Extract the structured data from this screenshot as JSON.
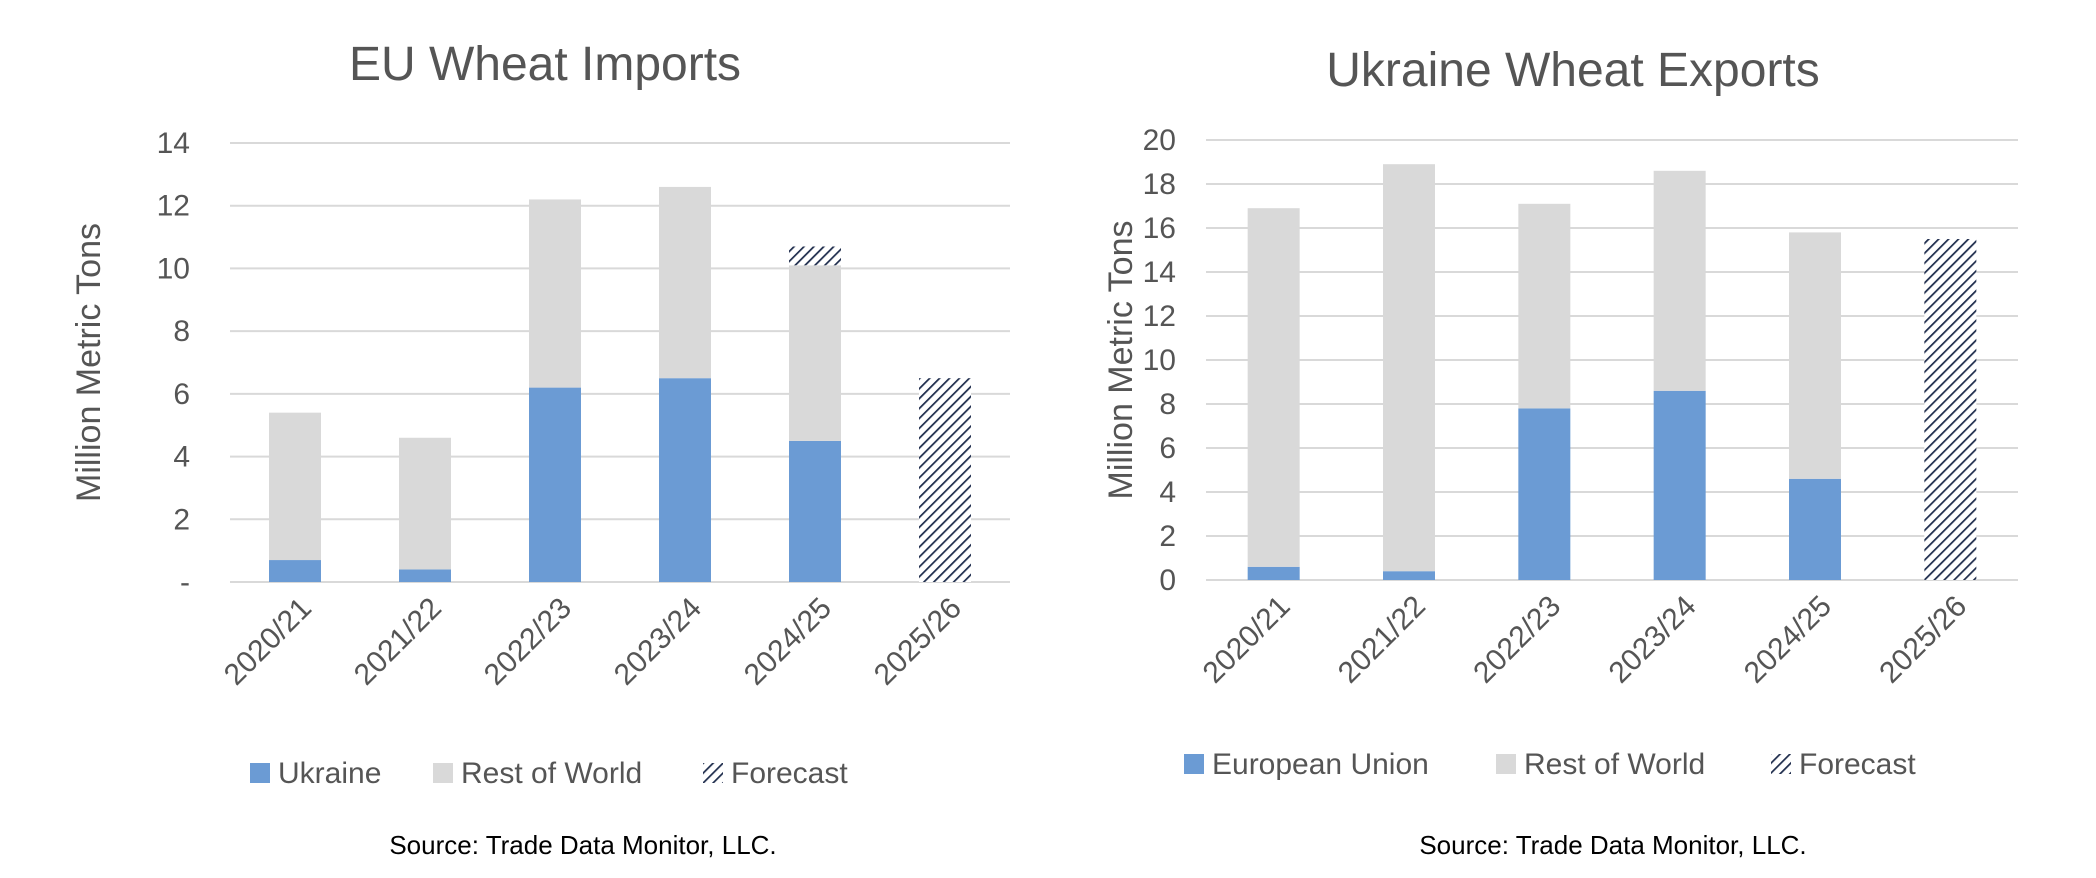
{
  "colors": {
    "primary": "#6b9bd4",
    "rest": "#d9d9d9",
    "forecast": "#1f2d4d",
    "grid": "#d9d9d9",
    "text": "#555555"
  },
  "chart_data": [
    {
      "type": "bar",
      "stacked": true,
      "title": "EU Wheat Imports",
      "ylabel": "Million Metric Tons",
      "xlabel": "",
      "ylim": [
        0,
        14
      ],
      "yticks": [
        0,
        2,
        4,
        6,
        8,
        10,
        12,
        14
      ],
      "ytick_labels": [
        "-",
        "2",
        "4",
        "6",
        "8",
        "10",
        "12",
        "14"
      ],
      "categories": [
        "2020/21",
        "2021/22",
        "2022/23",
        "2023/24",
        "2024/25",
        "2025/26"
      ],
      "series": [
        {
          "name": "Ukraine",
          "color": "#6b9bd4",
          "pattern": false,
          "values": [
            0.7,
            0.4,
            6.2,
            6.5,
            4.5,
            0
          ]
        },
        {
          "name": "Rest of World",
          "color": "#d9d9d9",
          "pattern": false,
          "values": [
            4.7,
            4.2,
            6.0,
            6.1,
            5.6,
            0
          ]
        },
        {
          "name": "Forecast",
          "color": "#1f2d4d",
          "pattern": true,
          "values": [
            0,
            0,
            0,
            0,
            0.6,
            6.5
          ]
        }
      ],
      "grid": true,
      "legend_position": "bottom",
      "source": "Source: Trade Data Monitor, LLC."
    },
    {
      "type": "bar",
      "stacked": true,
      "title": "Ukraine Wheat Exports",
      "ylabel": "Million Metric Tons",
      "xlabel": "",
      "ylim": [
        0,
        20
      ],
      "yticks": [
        0,
        2,
        4,
        6,
        8,
        10,
        12,
        14,
        16,
        18,
        20
      ],
      "ytick_labels": [
        "0",
        "2",
        "4",
        "6",
        "8",
        "10",
        "12",
        "14",
        "16",
        "18",
        "20"
      ],
      "categories": [
        "2020/21",
        "2021/22",
        "2022/23",
        "2023/24",
        "2024/25",
        "2025/26"
      ],
      "series": [
        {
          "name": "European Union",
          "color": "#6b9bd4",
          "pattern": false,
          "values": [
            0.6,
            0.4,
            7.8,
            8.6,
            4.6,
            0
          ]
        },
        {
          "name": "Rest of World",
          "color": "#d9d9d9",
          "pattern": false,
          "values": [
            16.3,
            18.5,
            9.3,
            10.0,
            11.2,
            0
          ]
        },
        {
          "name": "Forecast",
          "color": "#1f2d4d",
          "pattern": true,
          "values": [
            0,
            0,
            0,
            0,
            0,
            15.5
          ]
        }
      ],
      "grid": true,
      "legend_position": "bottom",
      "source": "Source: Trade Data Monitor, LLC."
    }
  ]
}
